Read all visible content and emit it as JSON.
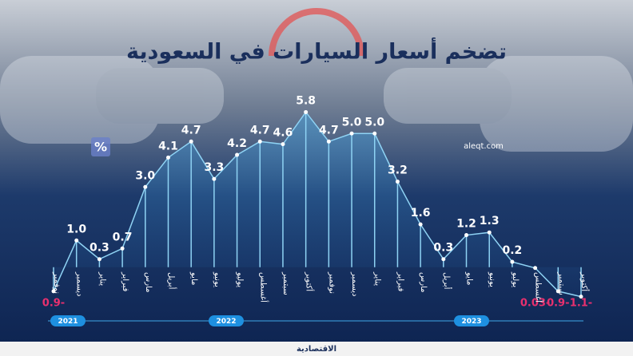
{
  "chart_data": {
    "type": "line",
    "title": "تضخم أسعار السيارات في السعودية",
    "categories": [
      "نوفمبر",
      "ديسمبر",
      "يناير",
      "فبراير",
      "مارس",
      "أبريل",
      "مايو",
      "يونيو",
      "يوليو",
      "أغسطس",
      "سبتمبر",
      "أكتوبر",
      "نوفمبر",
      "ديسمبر",
      "يناير",
      "فبراير",
      "مارس",
      "أبريل",
      "مايو",
      "يونيو",
      "يوليو",
      "أغسطس",
      "سبتمبر",
      "أكتوبر"
    ],
    "values": [
      -0.9,
      1.0,
      0.3,
      0.7,
      3.0,
      4.1,
      4.7,
      3.3,
      4.2,
      4.7,
      4.6,
      5.8,
      4.7,
      5.0,
      5.0,
      3.2,
      1.6,
      0.3,
      1.2,
      1.3,
      0.2,
      -0.03,
      -0.9,
      -1.1
    ],
    "value_labels": [
      "0.9-",
      "1.0",
      "0.3",
      "0.7",
      "3.0",
      "4.1",
      "4.7",
      "3.3",
      "4.2",
      "4.7",
      "4.6",
      "5.8",
      "4.7",
      "5.0",
      "5.0",
      "3.2",
      "1.6",
      "0.3",
      "1.2",
      "1.3",
      "0.2",
      "0.03-",
      "0.9-",
      "1.1-"
    ],
    "ylim": [
      -1.5,
      6.5
    ],
    "color": "#8fd3f4",
    "negative_color": "#e8306e",
    "unit": "%"
  },
  "timeline": [
    "2021",
    "2022",
    "2023"
  ],
  "source": "aleqt.com",
  "footer": "الاقتصادية"
}
